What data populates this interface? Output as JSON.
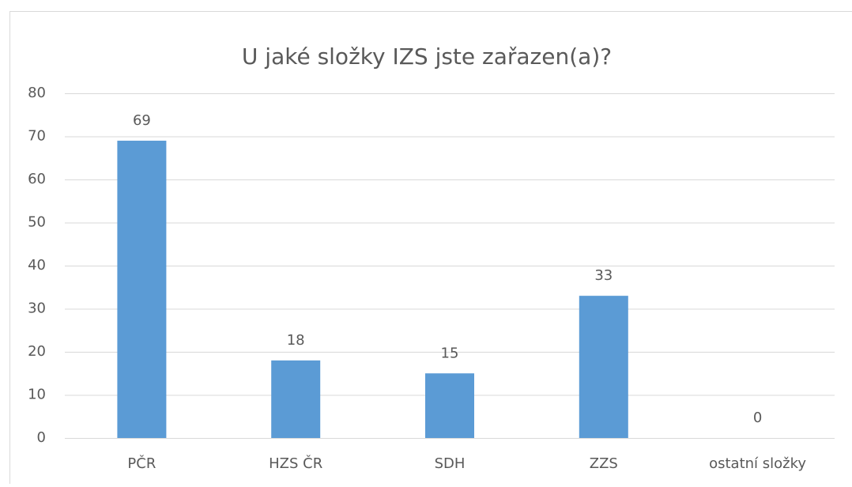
{
  "chart_data": {
    "type": "bar",
    "title": "U jaké složky IZS jste zařazen(a)?",
    "categories": [
      "PČR",
      "HZS ČR",
      "SDH",
      "ZZS",
      "ostatní složky"
    ],
    "values": [
      69,
      18,
      15,
      33,
      0
    ],
    "color": "#5b9bd5",
    "ylim": [
      0,
      80
    ],
    "yticks": [
      0,
      10,
      20,
      30,
      40,
      50,
      60,
      70,
      80
    ],
    "grid": true
  }
}
